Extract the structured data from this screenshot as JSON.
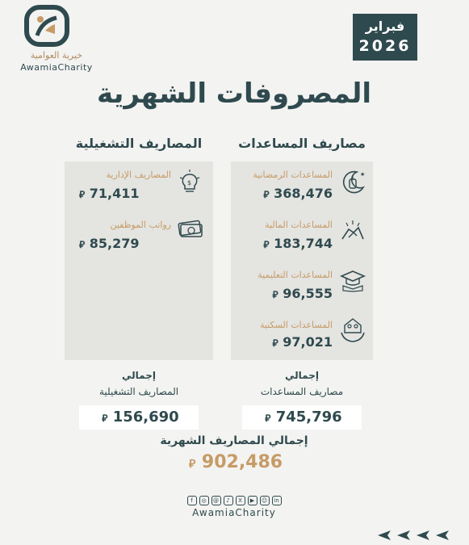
{
  "brand": {
    "name_ar": "خيرية العوامية",
    "name_en": "AwamiaCharity",
    "handle": "AwamiaCharity",
    "primary_color": "#2f4a4e",
    "accent_color": "#c69b66"
  },
  "date": {
    "month": "فبراير",
    "year": "2026"
  },
  "title": "المصروفات الشهرية",
  "currency_symbol": "⃁",
  "aid": {
    "heading": "مصاريف المساعدات",
    "items": [
      {
        "label": "المساعدات الرمضانية",
        "value": "368,476",
        "icon": "crescent-lantern-icon"
      },
      {
        "label": "المساعدات المالية",
        "value": "183,744",
        "icon": "handshake-icon"
      },
      {
        "label": "المساعدات التعليمية",
        "value": "96,555",
        "icon": "graduation-cap-icon"
      },
      {
        "label": "المساعدات السكنية",
        "value": "97,021",
        "icon": "family-home-icon"
      }
    ],
    "total_prefix": "إجمالي",
    "total_label": "مصاريف المساعدات",
    "total_value": "745,796"
  },
  "ops": {
    "heading": "المصاريف التشغيلية",
    "items": [
      {
        "label": "المصاريف الإدارية",
        "value": "71,411",
        "icon": "lightbulb-icon"
      },
      {
        "label": "رواتب الموظفين",
        "value": "85,279",
        "icon": "banknote-icon"
      }
    ],
    "total_prefix": "إجمالي",
    "total_label": "المصاريف التشغيلية",
    "total_value": "156,690"
  },
  "grand_total": {
    "label": "إجمالي المصاريف الشهرية",
    "value": "902,486"
  },
  "social_icons": [
    "facebook-icon",
    "instagram-icon",
    "threads-icon",
    "tiktok-icon",
    "x-icon",
    "youtube-icon",
    "snapchat-icon",
    "linkedin-icon"
  ]
}
